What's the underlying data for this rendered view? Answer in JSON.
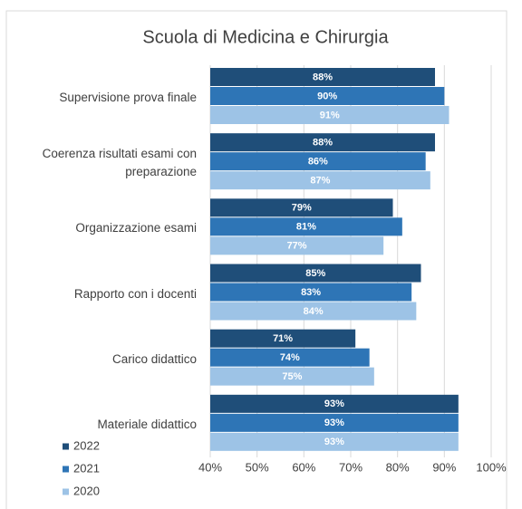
{
  "chart_data": {
    "type": "barh",
    "title": "Scuola di Medicina e Chirurgia",
    "categories": [
      "Supervisione prova finale",
      "Coerenza risultati esami con preparazione",
      "Organizzazione esami",
      "Rapporto con i docenti",
      "Carico didattico",
      "Materiale didattico"
    ],
    "series": [
      {
        "name": "2022",
        "color": "#1f4e79",
        "values": [
          88,
          88,
          79,
          85,
          71,
          93
        ],
        "value_labels": [
          "88%",
          "88%",
          "79%",
          "85%",
          "71%",
          "93%"
        ]
      },
      {
        "name": "2021",
        "color": "#2e75b6",
        "values": [
          90,
          86,
          81,
          83,
          74,
          93
        ],
        "value_labels": [
          "90%",
          "86%",
          "81%",
          "83%",
          "74%",
          "93%"
        ]
      },
      {
        "name": "2020",
        "color": "#9dc3e6",
        "values": [
          91,
          87,
          77,
          84,
          75,
          93
        ],
        "value_labels": [
          "91%",
          "87%",
          "77%",
          "84%",
          "75%",
          "93%"
        ]
      }
    ],
    "xlim": [
      40,
      100
    ],
    "xticks": [
      {
        "value": 40,
        "label": "40%"
      },
      {
        "value": 50,
        "label": "50%"
      },
      {
        "value": 60,
        "label": "60%"
      },
      {
        "value": 70,
        "label": "70%"
      },
      {
        "value": 80,
        "label": "80%"
      },
      {
        "value": 90,
        "label": "90%"
      },
      {
        "value": 100,
        "label": "100%"
      }
    ],
    "grid": true,
    "legend": "bottom-left"
  }
}
